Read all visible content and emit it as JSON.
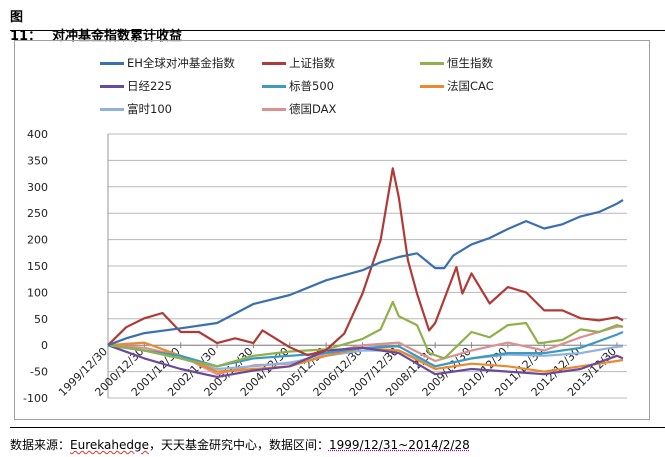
{
  "header": {
    "figure_number": "图11：",
    "title": "对冲基金指数累计收益"
  },
  "footer": {
    "source_label": "数据来源：",
    "source_name": "Eurekahedge",
    "source_rest": "，天天基金研究中心，数据区间：",
    "range": "1999/12/31~2014/2/28"
  },
  "chart_data": {
    "type": "line",
    "title": "",
    "xlabel": "",
    "ylabel": "",
    "ylim": [
      -100,
      400
    ],
    "yticks": [
      "-100",
      "-50",
      "0",
      "50",
      "100",
      "150",
      "200",
      "250",
      "300",
      "350",
      "400"
    ],
    "xticks": [
      "1999/12/30",
      "2000/12/30",
      "2001/12/30",
      "2002/12/30",
      "2003/12/30",
      "2004/12/30",
      "2005/12/30",
      "2006/12/30",
      "2007/12/30",
      "2008/12/30",
      "2009/12/30",
      "2010/12/30",
      "2011/12/30",
      "2012/12/30",
      "2013/12/30"
    ],
    "xlim": [
      "1999-12",
      "2014-02"
    ],
    "grid": "horizontal",
    "legend_position": "top",
    "series": [
      {
        "name": "EH全球对冲基金指数",
        "color": "#3a6fb0",
        "x": [
          "1999-12",
          "2000-06",
          "2000-12",
          "2001-12",
          "2002-12",
          "2003-12",
          "2004-12",
          "2005-12",
          "2006-12",
          "2007-06",
          "2007-12",
          "2008-06",
          "2008-12",
          "2009-03",
          "2009-06",
          "2009-12",
          "2010-06",
          "2010-12",
          "2011-06",
          "2011-12",
          "2012-06",
          "2012-12",
          "2013-06",
          "2013-12",
          "2014-02"
        ],
        "y": [
          0,
          13,
          23,
          32,
          42,
          78,
          95,
          123,
          142,
          157,
          167,
          174,
          146,
          146,
          170,
          191,
          203,
          220,
          235,
          221,
          229,
          244,
          252,
          268,
          275
        ]
      },
      {
        "name": "上证指数",
        "color": "#b03a36",
        "x": [
          "1999-12",
          "2000-06",
          "2000-12",
          "2001-06",
          "2001-12",
          "2002-06",
          "2002-12",
          "2003-06",
          "2003-12",
          "2004-03",
          "2004-12",
          "2005-06",
          "2005-12",
          "2006-06",
          "2006-12",
          "2007-06",
          "2007-10",
          "2007-12",
          "2008-03",
          "2008-06",
          "2008-10",
          "2008-12",
          "2009-07",
          "2009-09",
          "2009-12",
          "2010-06",
          "2010-12",
          "2011-06",
          "2011-12",
          "2012-06",
          "2012-12",
          "2013-06",
          "2013-12",
          "2014-02"
        ],
        "y": [
          0,
          34,
          51,
          61,
          25,
          25,
          4,
          13,
          4,
          28,
          -4,
          -19,
          -9,
          22,
          98,
          199,
          335,
          280,
          161,
          98,
          28,
          42,
          148,
          98,
          136,
          79,
          110,
          100,
          66,
          66,
          51,
          47,
          53,
          47
        ]
      },
      {
        "name": "恒生指数",
        "color": "#8fb04a",
        "x": [
          "1999-12",
          "2000-12",
          "2001-12",
          "2002-12",
          "2003-12",
          "2004-12",
          "2005-12",
          "2006-12",
          "2007-06",
          "2007-10",
          "2007-12",
          "2008-06",
          "2008-10",
          "2009-03",
          "2009-12",
          "2010-06",
          "2010-12",
          "2011-06",
          "2011-10",
          "2011-12",
          "2012-06",
          "2012-12",
          "2013-06",
          "2013-12",
          "2014-02"
        ],
        "y": [
          0,
          -10,
          -25,
          -40,
          -20,
          -12,
          -8,
          12,
          30,
          82,
          55,
          38,
          -15,
          -25,
          25,
          15,
          38,
          42,
          4,
          5,
          10,
          30,
          25,
          38,
          35
        ]
      },
      {
        "name": "日经225",
        "color": "#6a4a9a",
        "x": [
          "1999-12",
          "2000-12",
          "2001-12",
          "2002-12",
          "2003-12",
          "2004-12",
          "2005-12",
          "2006-12",
          "2007-12",
          "2008-12",
          "2009-12",
          "2010-12",
          "2011-12",
          "2012-12",
          "2013-12",
          "2014-02"
        ],
        "y": [
          0,
          -25,
          -45,
          -60,
          -48,
          -40,
          -10,
          -5,
          -15,
          -55,
          -45,
          -50,
          -55,
          -45,
          -20,
          -25
        ]
      },
      {
        "name": "标普500",
        "color": "#3b9ac0",
        "x": [
          "1999-12",
          "2000-12",
          "2001-12",
          "2002-12",
          "2003-12",
          "2004-12",
          "2005-12",
          "2006-12",
          "2007-12",
          "2008-12",
          "2009-12",
          "2010-12",
          "2011-12",
          "2012-12",
          "2013-12",
          "2014-02"
        ],
        "y": [
          0,
          -10,
          -20,
          -40,
          -25,
          -20,
          -15,
          -5,
          -2,
          -40,
          -25,
          -15,
          -15,
          -5,
          20,
          25
        ]
      },
      {
        "name": "法国CAC",
        "color": "#e98a2e",
        "x": [
          "1999-12",
          "2000-12",
          "2001-12",
          "2002-12",
          "2003-12",
          "2004-12",
          "2005-12",
          "2006-12",
          "2007-12",
          "2008-12",
          "2009-12",
          "2010-12",
          "2011-12",
          "2012-12",
          "2013-12",
          "2014-02"
        ],
        "y": [
          0,
          5,
          -20,
          -50,
          -45,
          -40,
          -20,
          -5,
          -10,
          -45,
          -35,
          -40,
          -50,
          -40,
          -30,
          -28
        ]
      },
      {
        "name": "富时100",
        "color": "#8fb3de",
        "x": [
          "1999-12",
          "2000-12",
          "2001-12",
          "2002-12",
          "2003-12",
          "2004-12",
          "2005-12",
          "2006-12",
          "2007-12",
          "2008-12",
          "2009-12",
          "2010-12",
          "2011-12",
          "2012-12",
          "2013-12",
          "2014-02"
        ],
        "y": [
          0,
          -10,
          -25,
          -45,
          -40,
          -33,
          -20,
          -10,
          -10,
          -40,
          -25,
          -18,
          -20,
          -15,
          -3,
          -2
        ]
      },
      {
        "name": "德国DAX",
        "color": "#de9090",
        "x": [
          "1999-12",
          "2000-12",
          "2001-12",
          "2002-12",
          "2003-12",
          "2004-12",
          "2005-12",
          "2006-12",
          "2007-12",
          "2008-12",
          "2009-12",
          "2010-12",
          "2011-12",
          "2012-12",
          "2013-12",
          "2014-02"
        ],
        "y": [
          0,
          -5,
          -20,
          -55,
          -38,
          -35,
          -15,
          0,
          5,
          -30,
          -10,
          5,
          -10,
          15,
          35,
          35
        ]
      }
    ]
  }
}
